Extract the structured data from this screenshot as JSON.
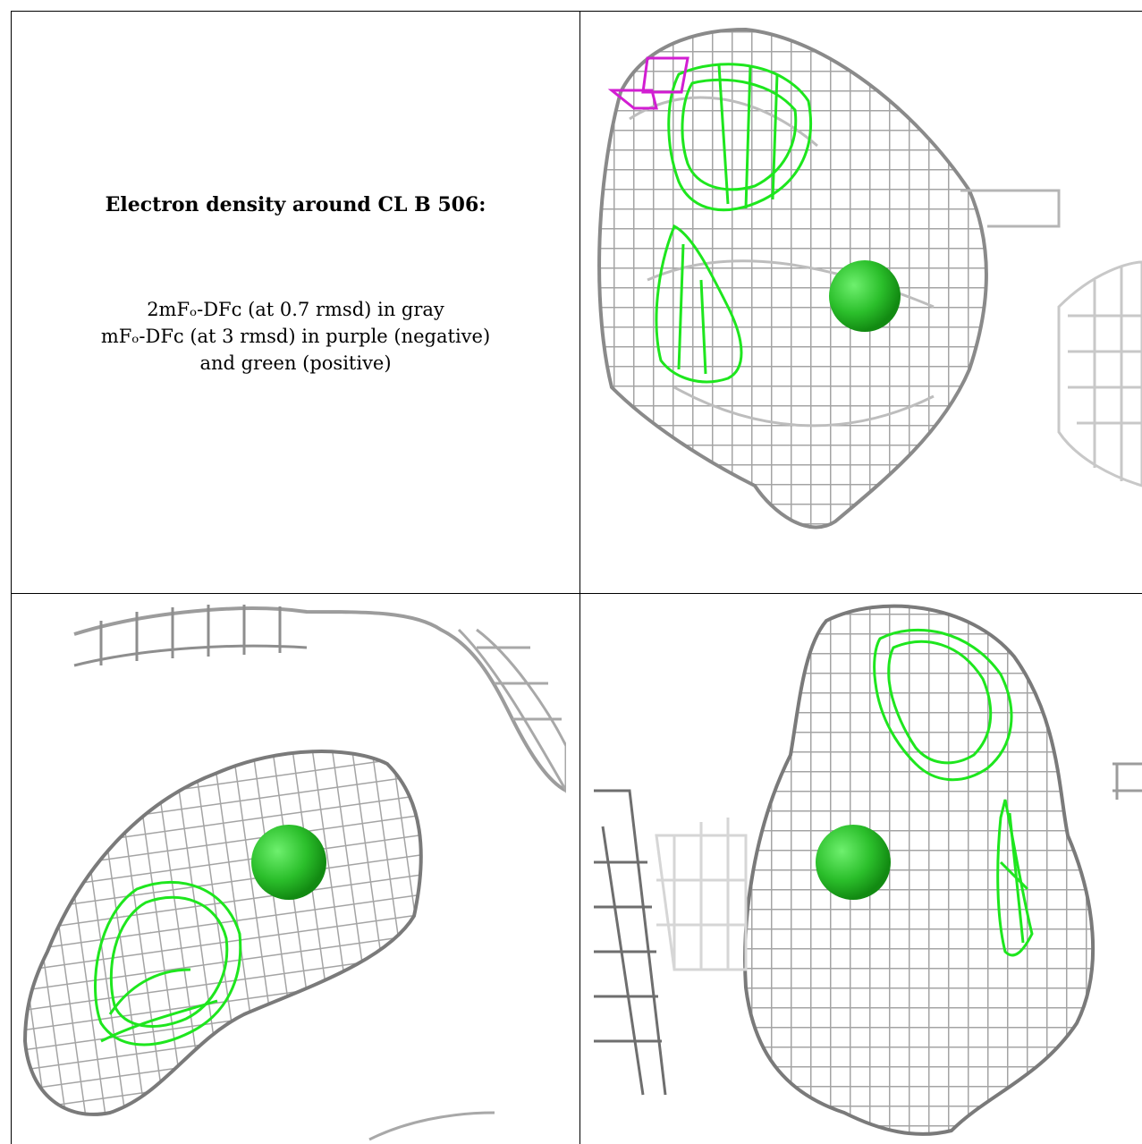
{
  "title": "Electron density around CL B 506:",
  "legend_lines": [
    "2mFₒ-DFᴄ (at 0.7 rmsd) in gray",
    "mFₒ-DFᴄ (at 3 rmsd) in purple (negative)",
    "and green (positive)"
  ],
  "colors": {
    "map_2fofc": "#a9a9a9",
    "map_2fofc_dark": "#6e6e6e",
    "diff_positive": "#1ee61e",
    "diff_negative": "#d21ed2",
    "atom": "#2bbf2b"
  },
  "panels": [
    "view-top-right",
    "view-bottom-left",
    "view-bottom-right"
  ]
}
